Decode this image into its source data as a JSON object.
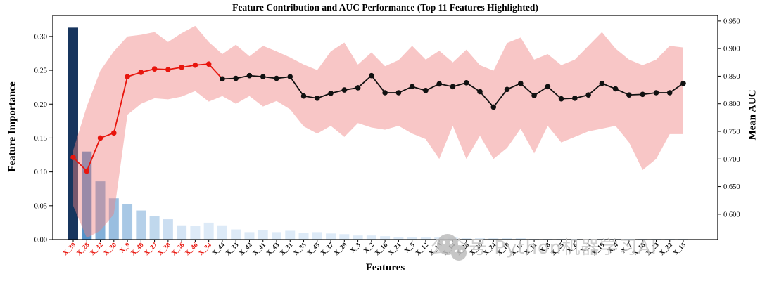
{
  "title": "Feature Contribution and AUC Performance (Top 11 Features Highlighted)",
  "xlabel": "Features",
  "ylabel_left": "Feature Importance",
  "ylabel_right": "Mean AUC",
  "watermark": {
    "icon": "wechat-chat-bubbles-icon",
    "text": "公众号 Python机器学习AI"
  },
  "chart_data": {
    "type": "combo-bar-line",
    "title": "Feature Contribution and AUC Performance (Top 11 Features Highlighted)",
    "xlabel": "Features",
    "categories": [
      "X_39",
      "X_28",
      "X_32",
      "X_30",
      "X_9",
      "X_40",
      "X_27",
      "X_38",
      "X_36",
      "X_46",
      "X_34",
      "X_44",
      "X_33",
      "X_42",
      "X_41",
      "X_43",
      "X_31",
      "X_35",
      "X_45",
      "X_37",
      "X_29",
      "X_3",
      "X_2",
      "X_16",
      "X_21",
      "X_5",
      "X_12",
      "X_13",
      "X_14",
      "X_26",
      "X_20",
      "X_24",
      "X_10",
      "X_17",
      "X_11",
      "X_8",
      "X_25",
      "X_6",
      "X_1",
      "X_19",
      "X_4",
      "X_7",
      "X_18",
      "X_23",
      "X_22",
      "X_15"
    ],
    "highlight": {
      "count": 11,
      "tick_color": "#e8150d"
    },
    "series": [
      {
        "name": "Feature Importance",
        "type": "bar",
        "axis": "left",
        "values": [
          0.313,
          0.13,
          0.086,
          0.061,
          0.052,
          0.043,
          0.035,
          0.03,
          0.021,
          0.02,
          0.025,
          0.021,
          0.015,
          0.011,
          0.014,
          0.011,
          0.013,
          0.01,
          0.011,
          0.009,
          0.008,
          0.006,
          0.006,
          0.005,
          0.004,
          0.004,
          0.003,
          0.003,
          0.003,
          0.002,
          0.002,
          0.002,
          0.002,
          0.002,
          0.001,
          0.001,
          0.001,
          0.001,
          0.001,
          0.001,
          0.001,
          0.001,
          0.001,
          0.001,
          0.001,
          0.001
        ]
      },
      {
        "name": "Mean AUC",
        "type": "line",
        "axis": "right",
        "values": [
          0.703,
          0.678,
          0.738,
          0.747,
          0.849,
          0.857,
          0.863,
          0.862,
          0.866,
          0.87,
          0.872,
          0.845,
          0.846,
          0.851,
          0.849,
          0.846,
          0.849,
          0.814,
          0.81,
          0.819,
          0.825,
          0.829,
          0.851,
          0.82,
          0.82,
          0.831,
          0.824,
          0.836,
          0.831,
          0.838,
          0.822,
          0.794,
          0.826,
          0.837,
          0.815,
          0.831,
          0.809,
          0.81,
          0.816,
          0.837,
          0.827,
          0.816,
          0.817,
          0.82,
          0.82,
          0.837
        ],
        "band_upper": [
          0.716,
          0.795,
          0.86,
          0.895,
          0.922,
          0.925,
          0.93,
          0.912,
          0.928,
          0.941,
          0.912,
          0.89,
          0.907,
          0.886,
          0.905,
          0.895,
          0.884,
          0.871,
          0.861,
          0.895,
          0.911,
          0.871,
          0.893,
          0.868,
          0.879,
          0.905,
          0.88,
          0.896,
          0.875,
          0.898,
          0.87,
          0.86,
          0.91,
          0.92,
          0.88,
          0.89,
          0.87,
          0.88,
          0.905,
          0.93,
          0.9,
          0.88,
          0.87,
          0.88,
          0.905,
          0.902
        ],
        "band_lower": [
          0.615,
          0.557,
          0.57,
          0.6,
          0.78,
          0.8,
          0.81,
          0.808,
          0.813,
          0.823,
          0.804,
          0.814,
          0.8,
          0.814,
          0.795,
          0.805,
          0.79,
          0.759,
          0.746,
          0.76,
          0.74,
          0.765,
          0.757,
          0.753,
          0.76,
          0.746,
          0.736,
          0.7,
          0.76,
          0.7,
          0.742,
          0.7,
          0.72,
          0.755,
          0.71,
          0.76,
          0.73,
          0.74,
          0.75,
          0.755,
          0.76,
          0.73,
          0.68,
          0.7,
          0.745,
          0.745
        ]
      }
    ],
    "axes": {
      "left": {
        "label": "Feature Importance",
        "ticks": [
          "0.00",
          "0.05",
          "0.10",
          "0.15",
          "0.20",
          "0.25",
          "0.30"
        ],
        "range": [
          0,
          0.331
        ]
      },
      "right": {
        "label": "Mean AUC",
        "ticks": [
          "0.600",
          "0.650",
          "0.700",
          "0.750",
          "0.800",
          "0.850",
          "0.900",
          "0.950"
        ],
        "range": [
          0.554,
          0.96
        ]
      }
    },
    "legend": "none",
    "grid": false,
    "colors": {
      "bar_first": "#17355e",
      "bar_grad_start": "#5492c8",
      "bar_grad_end": "#ddeaf7",
      "band": "rgba(240,128,128,0.45)",
      "line_highlight": "#e8150d",
      "line_normal": "#111111",
      "frame": "#000000"
    }
  }
}
